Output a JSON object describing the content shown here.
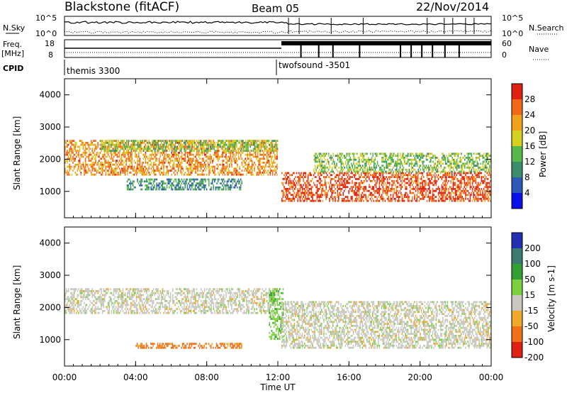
{
  "header": {
    "title": "Blackstone (fitACF)",
    "beam": "Beam 05",
    "date": "22/Nov/2014"
  },
  "panels": {
    "nsky_label": "N.Sky",
    "nsky_ticks": [
      "10^5",
      "10^0"
    ],
    "nsearch_label": "N.Search",
    "nsearch_ticks": [
      "10^5",
      "10^0"
    ],
    "freq_label": "Freq.",
    "freq_unit": "[MHz]",
    "freq_ticks": [
      "18",
      "8"
    ],
    "nave_label": "Nave",
    "nave_ticks": [
      "60",
      "0"
    ],
    "cpid_label": "CPID",
    "cpid_1": "themis 3300",
    "cpid_2": "twofsound -3501"
  },
  "chart_data": [
    {
      "type": "heatmap",
      "title": "",
      "xlabel": "",
      "ylabel": "Slant Range [km]",
      "xlim": [
        0,
        24
      ],
      "ylim": [
        180,
        4500
      ],
      "x_ticks": [
        "00:00",
        "04:00",
        "08:00",
        "12:00",
        "16:00",
        "20:00",
        "00:00"
      ],
      "y_ticks": [
        1000,
        2000,
        3000,
        4000
      ],
      "colorbar": {
        "label": "Power [dB]",
        "ticks": [
          4,
          8,
          12,
          16,
          20,
          24,
          28
        ],
        "range": [
          0,
          30
        ],
        "colors": [
          "#0a10e8",
          "#2e58b8",
          "#3a8e6c",
          "#55b84a",
          "#d8d020",
          "#f0a21c",
          "#f26818",
          "#e02010"
        ]
      },
      "echo_bands": [
        {
          "name": "band 1",
          "start": 0.0,
          "end": 12.0,
          "range_start": 1500,
          "range_end": 2600,
          "power": 22
        },
        {
          "name": "band 2",
          "start": 2.0,
          "end": 12.0,
          "range_start": 2200,
          "range_end": 2600,
          "power": 14
        },
        {
          "name": "band 3",
          "start": 3.5,
          "end": 10.0,
          "range_start": 1000,
          "range_end": 1400,
          "power": 10
        },
        {
          "name": "band 4",
          "start": 12.2,
          "end": 24.0,
          "range_start": 700,
          "range_end": 1600,
          "power": 26
        },
        {
          "name": "band 5",
          "start": 14.0,
          "end": 24.0,
          "range_start": 1600,
          "range_end": 2200,
          "power": 14
        }
      ]
    },
    {
      "type": "heatmap",
      "title": "",
      "xlabel": "Time UT",
      "ylabel": "Slant Range [km]",
      "xlim": [
        0,
        24
      ],
      "ylim": [
        180,
        4500
      ],
      "x_ticks": [
        "00:00",
        "04:00",
        "08:00",
        "12:00",
        "16:00",
        "20:00",
        "00:00"
      ],
      "y_ticks": [
        1000,
        2000,
        3000,
        4000
      ],
      "colorbar": {
        "label": "Velocity [m s-1]",
        "ticks": [
          200,
          100,
          50,
          15,
          -15,
          -50,
          -100,
          -200
        ],
        "range": [
          -250,
          250
        ],
        "colors": [
          "#2030b0",
          "#3a7a70",
          "#30a030",
          "#7cd040",
          "#c8c8c0",
          "#f0a82a",
          "#f07018",
          "#e02010"
        ]
      },
      "echo_bands": [
        {
          "name": "band 1",
          "start": 0.0,
          "end": 12.0,
          "range_start": 1800,
          "range_end": 2600,
          "velocity": 0
        },
        {
          "name": "band 2",
          "start": 4.0,
          "end": 10.0,
          "range_start": 700,
          "range_end": 900,
          "velocity": -60
        },
        {
          "name": "band 3",
          "start": 11.5,
          "end": 12.3,
          "range_start": 1000,
          "range_end": 2600,
          "velocity": 40
        },
        {
          "name": "band 4",
          "start": 12.2,
          "end": 24.0,
          "range_start": 700,
          "range_end": 2200,
          "velocity": 0
        }
      ]
    }
  ]
}
